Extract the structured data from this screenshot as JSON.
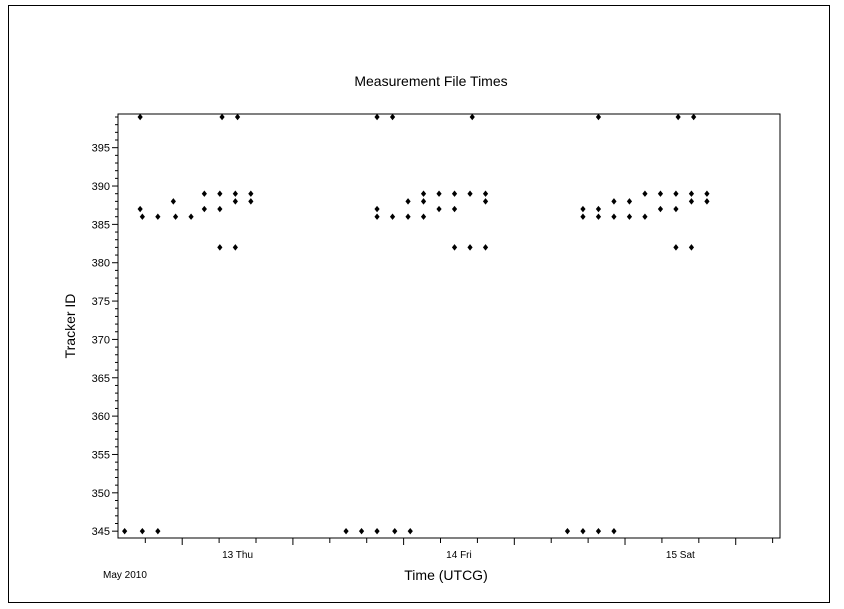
{
  "chart_data": {
    "type": "scatter",
    "title": "Measurement File Times",
    "xlabel": "Time (UTCG)",
    "ylabel": "Tracker ID",
    "x_period_label": "May 2010",
    "x_tick_labels": [
      {
        "x": 13.25,
        "label": "13 Thu"
      },
      {
        "x": 14.25,
        "label": "14 Fri"
      },
      {
        "x": 15.25,
        "label": "15 Sat"
      }
    ],
    "xlim": [
      12.74,
      15.67
    ],
    "ylim": [
      344.5,
      399
    ],
    "yticks": [
      345,
      350,
      355,
      360,
      365,
      370,
      375,
      380,
      385,
      390,
      395
    ],
    "marker_color": "#000000",
    "points": [
      {
        "x": 12.74,
        "y": 345
      },
      {
        "x": 12.82,
        "y": 345
      },
      {
        "x": 12.89,
        "y": 345
      },
      {
        "x": 12.81,
        "y": 399
      },
      {
        "x": 12.81,
        "y": 387
      },
      {
        "x": 12.82,
        "y": 386
      },
      {
        "x": 12.89,
        "y": 386
      },
      {
        "x": 12.96,
        "y": 388
      },
      {
        "x": 12.97,
        "y": 386
      },
      {
        "x": 13.04,
        "y": 386
      },
      {
        "x": 13.1,
        "y": 389
      },
      {
        "x": 13.1,
        "y": 387
      },
      {
        "x": 13.17,
        "y": 389
      },
      {
        "x": 13.17,
        "y": 387
      },
      {
        "x": 13.17,
        "y": 382
      },
      {
        "x": 13.18,
        "y": 399
      },
      {
        "x": 13.24,
        "y": 389
      },
      {
        "x": 13.24,
        "y": 388
      },
      {
        "x": 13.24,
        "y": 382
      },
      {
        "x": 13.25,
        "y": 399
      },
      {
        "x": 13.31,
        "y": 389
      },
      {
        "x": 13.31,
        "y": 388
      },
      {
        "x": 13.74,
        "y": 345
      },
      {
        "x": 13.81,
        "y": 345
      },
      {
        "x": 13.88,
        "y": 345
      },
      {
        "x": 13.96,
        "y": 345
      },
      {
        "x": 14.03,
        "y": 345
      },
      {
        "x": 13.88,
        "y": 399
      },
      {
        "x": 13.95,
        "y": 399
      },
      {
        "x": 13.88,
        "y": 387
      },
      {
        "x": 13.88,
        "y": 386
      },
      {
        "x": 13.95,
        "y": 386
      },
      {
        "x": 14.02,
        "y": 388
      },
      {
        "x": 14.02,
        "y": 386
      },
      {
        "x": 14.09,
        "y": 389
      },
      {
        "x": 14.09,
        "y": 388
      },
      {
        "x": 14.09,
        "y": 386
      },
      {
        "x": 14.16,
        "y": 389
      },
      {
        "x": 14.16,
        "y": 387
      },
      {
        "x": 14.23,
        "y": 389
      },
      {
        "x": 14.23,
        "y": 387
      },
      {
        "x": 14.23,
        "y": 382
      },
      {
        "x": 14.3,
        "y": 389
      },
      {
        "x": 14.3,
        "y": 382
      },
      {
        "x": 14.31,
        "y": 399
      },
      {
        "x": 14.37,
        "y": 389
      },
      {
        "x": 14.37,
        "y": 388
      },
      {
        "x": 14.37,
        "y": 382
      },
      {
        "x": 14.74,
        "y": 345
      },
      {
        "x": 14.81,
        "y": 345
      },
      {
        "x": 14.88,
        "y": 345
      },
      {
        "x": 14.95,
        "y": 345
      },
      {
        "x": 14.81,
        "y": 387
      },
      {
        "x": 14.81,
        "y": 386
      },
      {
        "x": 14.88,
        "y": 387
      },
      {
        "x": 14.88,
        "y": 386
      },
      {
        "x": 14.88,
        "y": 399
      },
      {
        "x": 14.95,
        "y": 388
      },
      {
        "x": 14.95,
        "y": 386
      },
      {
        "x": 15.02,
        "y": 388
      },
      {
        "x": 15.02,
        "y": 386
      },
      {
        "x": 15.09,
        "y": 389
      },
      {
        "x": 15.09,
        "y": 386
      },
      {
        "x": 15.16,
        "y": 389
      },
      {
        "x": 15.16,
        "y": 387
      },
      {
        "x": 15.23,
        "y": 389
      },
      {
        "x": 15.23,
        "y": 387
      },
      {
        "x": 15.23,
        "y": 382
      },
      {
        "x": 15.24,
        "y": 399
      },
      {
        "x": 15.3,
        "y": 389
      },
      {
        "x": 15.3,
        "y": 388
      },
      {
        "x": 15.3,
        "y": 382
      },
      {
        "x": 15.31,
        "y": 399
      },
      {
        "x": 15.37,
        "y": 389
      },
      {
        "x": 15.37,
        "y": 388
      }
    ],
    "grid": false,
    "legend": "none"
  }
}
